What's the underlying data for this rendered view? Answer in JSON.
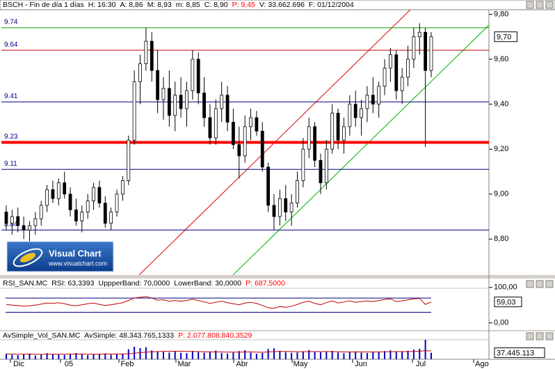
{
  "chart_data": [
    {
      "type": "candlestick",
      "header": [
        {
          "text": "BSCH - Fin de día 1 días",
          "color": "#000000"
        },
        {
          "text": "H: 16:30",
          "color": "#000000"
        },
        {
          "text": "A: 8,86",
          "color": "#000000"
        },
        {
          "text": "M: 8,93",
          "color": "#000000"
        },
        {
          "text": "m: 8,85",
          "color": "#000000"
        },
        {
          "text": "C: 8,90",
          "color": "#000000"
        },
        {
          "text": "P: 9,45",
          "color": "#ff0000"
        },
        {
          "text": "V: 33.662.696",
          "color": "#000000"
        },
        {
          "text": "F: 01/12/2004",
          "color": "#000000"
        }
      ],
      "ylim": [
        8.64,
        9.82
      ],
      "yticks": [
        {
          "value": 8.8,
          "label": "8,80"
        },
        {
          "value": 9.0,
          "label": "9,00"
        },
        {
          "value": 9.2,
          "label": "9,20"
        },
        {
          "value": 9.4,
          "label": "9,40"
        },
        {
          "value": 9.6,
          "label": "9,60"
        },
        {
          "value": 9.8,
          "label": "9,80"
        }
      ],
      "levels": [
        {
          "value": 9.74,
          "color": "#00a000",
          "width": 1
        },
        {
          "value": 9.64,
          "color": "#c00000",
          "width": 1
        },
        {
          "value": 9.41,
          "color": "#000080",
          "width": 1
        },
        {
          "value": 9.23,
          "color": "#ff0000",
          "width": 4
        },
        {
          "value": 9.11,
          "color": "#000080",
          "width": 1
        },
        {
          "value": 8.84,
          "color": "#000080",
          "width": 1
        }
      ],
      "last": {
        "value": 9.7,
        "label": "9,70"
      },
      "ohlc": [
        [
          8.92,
          8.95,
          8.84,
          8.87
        ],
        [
          8.87,
          8.93,
          8.82,
          8.9
        ],
        [
          8.9,
          8.94,
          8.83,
          8.86
        ],
        [
          8.86,
          8.9,
          8.8,
          8.84
        ],
        [
          8.84,
          8.88,
          8.79,
          8.86
        ],
        [
          8.86,
          8.92,
          8.82,
          8.89
        ],
        [
          8.89,
          8.97,
          8.86,
          8.95
        ],
        [
          8.95,
          9.04,
          8.92,
          9.02
        ],
        [
          9.02,
          9.06,
          8.96,
          8.98
        ],
        [
          8.98,
          9.07,
          8.95,
          9.05
        ],
        [
          9.05,
          9.1,
          8.98,
          9.0
        ],
        [
          9.0,
          9.03,
          8.9,
          8.93
        ],
        [
          8.93,
          8.98,
          8.86,
          8.88
        ],
        [
          8.88,
          8.95,
          8.83,
          8.92
        ],
        [
          8.92,
          9.0,
          8.89,
          8.97
        ],
        [
          8.97,
          9.05,
          8.93,
          9.03
        ],
        [
          9.03,
          9.06,
          8.94,
          8.96
        ],
        [
          8.96,
          8.99,
          8.85,
          8.87
        ],
        [
          8.87,
          8.94,
          8.84,
          8.92
        ],
        [
          8.92,
          9.02,
          8.9,
          9.0
        ],
        [
          9.0,
          9.08,
          8.97,
          9.06
        ],
        [
          9.06,
          9.26,
          9.04,
          9.24
        ],
        [
          9.24,
          9.55,
          9.22,
          9.5
        ],
        [
          9.5,
          9.62,
          9.4,
          9.58
        ],
        [
          9.58,
          9.74,
          9.55,
          9.68
        ],
        [
          9.68,
          9.72,
          9.5,
          9.55
        ],
        [
          9.55,
          9.64,
          9.36,
          9.42
        ],
        [
          9.42,
          9.52,
          9.33,
          9.47
        ],
        [
          9.47,
          9.55,
          9.3,
          9.35
        ],
        [
          9.35,
          9.5,
          9.28,
          9.44
        ],
        [
          9.44,
          9.52,
          9.34,
          9.38
        ],
        [
          9.38,
          9.5,
          9.3,
          9.46
        ],
        [
          9.46,
          9.64,
          9.42,
          9.6
        ],
        [
          9.6,
          9.63,
          9.4,
          9.45
        ],
        [
          9.45,
          9.52,
          9.3,
          9.34
        ],
        [
          9.34,
          9.4,
          9.22,
          9.25
        ],
        [
          9.25,
          9.42,
          9.22,
          9.38
        ],
        [
          9.38,
          9.5,
          9.32,
          9.44
        ],
        [
          9.44,
          9.48,
          9.28,
          9.32
        ],
        [
          9.32,
          9.38,
          9.2,
          9.22
        ],
        [
          9.22,
          9.3,
          9.07,
          9.17
        ],
        [
          9.17,
          9.35,
          9.14,
          9.3
        ],
        [
          9.3,
          9.38,
          9.24,
          9.34
        ],
        [
          9.34,
          9.37,
          9.26,
          9.28
        ],
        [
          9.28,
          9.32,
          9.1,
          9.12
        ],
        [
          9.12,
          9.14,
          8.92,
          8.95
        ],
        [
          8.95,
          9.0,
          8.84,
          8.9
        ],
        [
          8.9,
          9.02,
          8.86,
          8.98
        ],
        [
          8.98,
          9.04,
          8.88,
          8.92
        ],
        [
          8.92,
          9.0,
          8.86,
          8.96
        ],
        [
          8.96,
          9.1,
          8.94,
          9.06
        ],
        [
          9.06,
          9.25,
          9.03,
          9.2
        ],
        [
          9.2,
          9.34,
          9.16,
          9.3
        ],
        [
          9.3,
          9.32,
          9.12,
          9.15
        ],
        [
          9.15,
          9.18,
          9.0,
          9.05
        ],
        [
          9.05,
          9.24,
          9.02,
          9.2
        ],
        [
          9.2,
          9.4,
          9.18,
          9.36
        ],
        [
          9.36,
          9.38,
          9.2,
          9.24
        ],
        [
          9.24,
          9.34,
          9.18,
          9.3
        ],
        [
          9.3,
          9.44,
          9.26,
          9.4
        ],
        [
          9.4,
          9.46,
          9.3,
          9.34
        ],
        [
          9.34,
          9.42,
          9.26,
          9.38
        ],
        [
          9.38,
          9.48,
          9.32,
          9.44
        ],
        [
          9.44,
          9.52,
          9.36,
          9.4
        ],
        [
          9.4,
          9.5,
          9.34,
          9.48
        ],
        [
          9.48,
          9.6,
          9.44,
          9.56
        ],
        [
          9.56,
          9.65,
          9.5,
          9.62
        ],
        [
          9.62,
          9.64,
          9.42,
          9.46
        ],
        [
          9.46,
          9.56,
          9.4,
          9.52
        ],
        [
          9.52,
          9.66,
          9.48,
          9.6
        ],
        [
          9.6,
          9.74,
          9.56,
          9.7
        ],
        [
          9.7,
          9.76,
          9.62,
          9.72
        ],
        [
          9.72,
          9.74,
          9.21,
          9.55
        ],
        [
          9.55,
          9.72,
          9.52,
          9.7
        ]
      ]
    },
    {
      "type": "line",
      "header": [
        {
          "text": "RSI_SAN.MC",
          "color": "#000000"
        },
        {
          "text": "RSI: 63,3393",
          "color": "#000000"
        },
        {
          "text": "UppperBand: 70,0000",
          "color": "#000000"
        },
        {
          "text": "LowerBand: 30,0000",
          "color": "#000000"
        },
        {
          "text": "P: 687,5000",
          "color": "#ff0000"
        }
      ],
      "ylim": [
        -20,
        125
      ],
      "yticks": [
        {
          "value": 100,
          "label": "100,00"
        },
        {
          "value": 0,
          "label": "0,00"
        }
      ],
      "bands": [
        70,
        30
      ],
      "band_color": "#000080",
      "last": {
        "value": 59.03,
        "label": "59,03"
      },
      "series": [
        {
          "color": "#c00000",
          "values": [
            52,
            50,
            49,
            47,
            48,
            50,
            53,
            56,
            55,
            57,
            54,
            50,
            48,
            51,
            54,
            56,
            52,
            49,
            51,
            54,
            57,
            63,
            70,
            72,
            74,
            70,
            64,
            65,
            61,
            63,
            61,
            63,
            67,
            63,
            59,
            55,
            58,
            61,
            57,
            54,
            51,
            56,
            58,
            55,
            49,
            43,
            41,
            46,
            44,
            47,
            52,
            58,
            61,
            55,
            51,
            57,
            62,
            56,
            59,
            62,
            58,
            60,
            62,
            60,
            63,
            66,
            68,
            60,
            62,
            65,
            68,
            69,
            52,
            59.03
          ]
        }
      ]
    },
    {
      "type": "bar",
      "header": [
        {
          "text": "AvSimple_Vol_SAN.MC",
          "color": "#000000"
        },
        {
          "text": "AvSimple: 48.343.765,1333",
          "color": "#000000"
        },
        {
          "text": "P: 2.077.808.840,3529",
          "color": "#ff0000"
        }
      ],
      "ylim": [
        0,
        120000000.0
      ],
      "last": {
        "value": 37445113,
        "label": "37.445.113"
      },
      "series": [
        {
          "color": "#0000c0",
          "values": [
            31000000.0,
            26000000.0,
            24000000.0,
            29000000.0,
            33000000.0,
            22000000.0,
            28000000.0,
            35000000.0,
            30000000.0,
            27000000.0,
            25000000.0,
            32000000.0,
            36000000.0,
            29000000.0,
            24000000.0,
            28000000.0,
            31000000.0,
            34000000.0,
            26000000.0,
            30000000.0,
            33000000.0,
            58000000.0,
            72000000.0,
            64000000.0,
            69000000.0,
            51000000.0,
            46000000.0,
            42000000.0,
            39000000.0,
            44000000.0,
            37000000.0,
            35000000.0,
            48000000.0,
            41000000.0,
            38000000.0,
            45000000.0,
            50000000.0,
            36000000.0,
            33000000.0,
            39000000.0,
            47000000.0,
            52000000.0,
            38000000.0,
            32000000.0,
            36000000.0,
            59000000.0,
            63000000.0,
            49000000.0,
            41000000.0,
            37000000.0,
            39000000.0,
            46000000.0,
            53000000.0,
            44000000.0,
            40000000.0,
            43000000.0,
            48000000.0,
            39000000.0,
            35000000.0,
            41000000.0,
            45000000.0,
            38000000.0,
            36000000.0,
            42000000.0,
            40000000.0,
            47000000.0,
            51000000.0,
            46000000.0,
            43000000.0,
            49000000.0,
            56000000.0,
            60000000.0,
            112000000.0,
            37445113
          ]
        },
        {
          "color": "#c00000",
          "values": [
            30000000.0,
            30000000.0,
            29000000.0,
            29000000.0,
            29000000.0,
            29000000.0,
            28000000.0,
            29000000.0,
            29000000.0,
            29000000.0,
            29000000.0,
            29000000.0,
            30000000.0,
            30000000.0,
            29000000.0,
            29000000.0,
            29000000.0,
            30000000.0,
            30000000.0,
            30000000.0,
            30000000.0,
            32000000.0,
            35000000.0,
            38000000.0,
            41000000.0,
            43000000.0,
            44000000.0,
            45000000.0,
            46000000.0,
            46000000.0,
            46000000.0,
            45000000.0,
            45000000.0,
            44000000.0,
            43000000.0,
            42000000.0,
            42000000.0,
            42000000.0,
            41000000.0,
            41000000.0,
            41000000.0,
            42000000.0,
            42000000.0,
            41000000.0,
            40000000.0,
            42000000.0,
            44000000.0,
            45000000.0,
            45000000.0,
            44000000.0,
            43000000.0,
            43000000.0,
            44000000.0,
            44000000.0,
            44000000.0,
            44000000.0,
            44000000.0,
            43000000.0,
            42000000.0,
            42000000.0,
            42000000.0,
            42000000.0,
            42000000.0,
            42000000.0,
            42000000.0,
            43000000.0,
            43000000.0,
            44000000.0,
            44000000.0,
            44000000.0,
            45000000.0,
            46000000.0,
            49000000.0,
            48000000.0
          ]
        }
      ]
    }
  ],
  "x_labels": [
    "Dic",
    "05",
    "Feb",
    "Mar",
    "Abr",
    "May",
    "Jun",
    "Jul",
    "Ago"
  ],
  "logo": {
    "title": "Visual Chart",
    "url": "www.visualchart.com"
  }
}
